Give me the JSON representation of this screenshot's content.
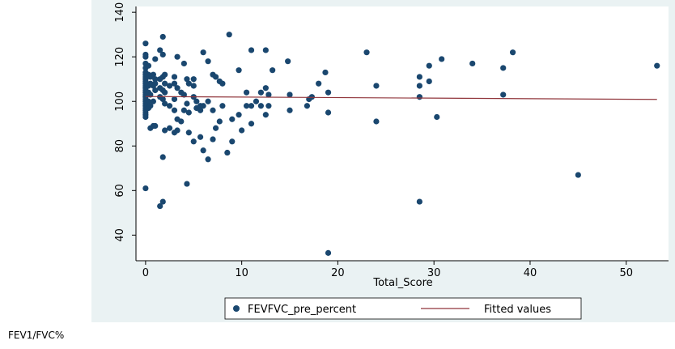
{
  "chart_data": {
    "type": "scatter",
    "x_label": "Total_Score",
    "footer": "FEV1/FVC%",
    "xlim": [
      -1,
      54.4
    ],
    "xticks": [
      0,
      10,
      20,
      30,
      40,
      50
    ],
    "ylim": [
      28.5,
      142.6
    ],
    "yticks": [
      40,
      60,
      80,
      100,
      120,
      140
    ],
    "grid": false,
    "series": [
      {
        "name": "FEVFVC_pre_percent",
        "color": "#1a476f",
        "type": "scatter",
        "x": [
          0,
          0,
          0,
          0,
          0,
          0,
          0,
          0,
          0,
          0,
          0,
          0,
          0,
          0,
          0,
          0,
          0,
          0,
          0,
          0,
          0,
          0,
          0,
          0,
          0,
          0,
          0,
          0.3,
          0.3,
          0.3,
          0.3,
          0.3,
          0.3,
          0.5,
          0.5,
          0.5,
          0.5,
          0.5,
          0.8,
          0.8,
          0.8,
          0.8,
          1,
          1,
          1,
          1,
          1,
          1.5,
          1.5,
          1.5,
          1.5,
          1.5,
          1.8,
          1.8,
          1.8,
          1.8,
          1.8,
          1.8,
          1.8,
          2,
          2,
          2,
          2,
          2,
          2.5,
          2.5,
          2.5,
          3,
          3,
          3,
          3,
          3,
          3.3,
          3.3,
          3.3,
          3.3,
          3.7,
          3.7,
          4,
          4,
          4,
          4.3,
          4.3,
          4.3,
          4.5,
          4.5,
          4.5,
          5,
          5,
          5,
          5,
          5.3,
          5.3,
          5.7,
          5.7,
          5.7,
          6,
          6,
          6,
          6.5,
          6.5,
          6.5,
          7,
          7,
          7,
          7.3,
          7.3,
          7.7,
          7.7,
          8,
          8,
          8.5,
          8.7,
          9,
          9,
          9.7,
          9.7,
          10,
          10.5,
          10.5,
          11,
          11,
          11,
          11.5,
          12,
          12,
          12.5,
          12.5,
          12.5,
          12.8,
          12.8,
          13.2,
          14.8,
          15,
          15,
          16.8,
          17,
          17.3,
          18,
          18.7,
          19,
          19,
          19,
          23,
          24,
          24,
          28.5,
          28.5,
          28.5,
          28.5,
          29.5,
          29.5,
          30.3,
          30.8,
          34,
          37.2,
          37.2,
          38.2,
          45,
          53.2
        ],
        "values": [
          126,
          121,
          120,
          117,
          115,
          113,
          112,
          111,
          110,
          109,
          108,
          107,
          106,
          105,
          104,
          103,
          102,
          101,
          100,
          99,
          98,
          97,
          96,
          95,
          94,
          93,
          61,
          116,
          112,
          107,
          104,
          100,
          97,
          111,
          108,
          103,
          98,
          88,
          112,
          107,
          100,
          89,
          119,
          110,
          108,
          105,
          89,
          123,
          110,
          106,
          102,
          53,
          129,
          121,
          111,
          105,
          101,
          75,
          55,
          112,
          108,
          104,
          99,
          87,
          107,
          98,
          88,
          111,
          108,
          101,
          96,
          86,
          120,
          106,
          92,
          87,
          104,
          91,
          117,
          103,
          96,
          110,
          99,
          63,
          108,
          95,
          86,
          110,
          107,
          102,
          82,
          97,
          100,
          98,
          96,
          84,
          122,
          98,
          78,
          118,
          100,
          74,
          112,
          96,
          83,
          111,
          88,
          109,
          91,
          108,
          98,
          77,
          130,
          92,
          82,
          114,
          94,
          87,
          104,
          98,
          123,
          98,
          90,
          100,
          104,
          98,
          123,
          106,
          94,
          103,
          98,
          114,
          118,
          103,
          96,
          98,
          101,
          102,
          108,
          113,
          104,
          95,
          32,
          122,
          107,
          91,
          111,
          107,
          102,
          55,
          116,
          109,
          93,
          119,
          117,
          115,
          103,
          122,
          67,
          116
        ]
      },
      {
        "name": "Fitted values",
        "color": "#90353b",
        "type": "line",
        "x": [
          0,
          53.2
        ],
        "values": [
          102.2,
          100.9
        ]
      }
    ]
  }
}
